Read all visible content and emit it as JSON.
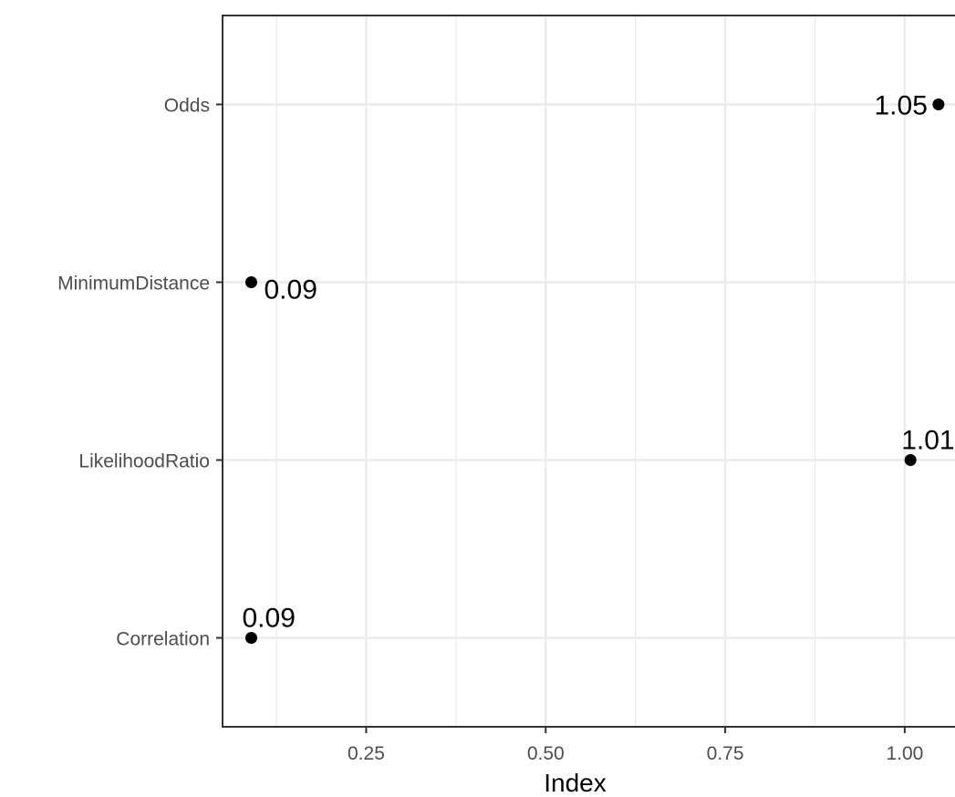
{
  "chart_data": {
    "type": "scatter",
    "title": "",
    "xlabel": "Index",
    "ylabel": "",
    "xlim": [
      0.05,
      1.07
    ],
    "x_ticks": [
      {
        "value": 0.25,
        "label": "0.25"
      },
      {
        "value": 0.5,
        "label": "0.50"
      },
      {
        "value": 0.75,
        "label": "0.75"
      },
      {
        "value": 1.0,
        "label": "1.00"
      }
    ],
    "categories": [
      "Odds",
      "MinimumDistance",
      "LikelihoodRatio",
      "Correlation"
    ],
    "points": [
      {
        "category": "Odds",
        "x": 1.047,
        "label": "1.05",
        "label_side": "left"
      },
      {
        "category": "MinimumDistance",
        "x": 0.09,
        "label": "0.09",
        "label_side": "below-right"
      },
      {
        "category": "LikelihoodRatio",
        "x": 1.008,
        "label": "1.01",
        "label_side": "above-right"
      },
      {
        "category": "Correlation",
        "x": 0.09,
        "label": "0.09",
        "label_side": "above-right"
      }
    ],
    "grid": true,
    "legend": "none",
    "colors": {
      "point": "#000000",
      "grid": "#ebebeb",
      "panel_border": "#333333",
      "tick_text": "#4d4d4d"
    }
  }
}
